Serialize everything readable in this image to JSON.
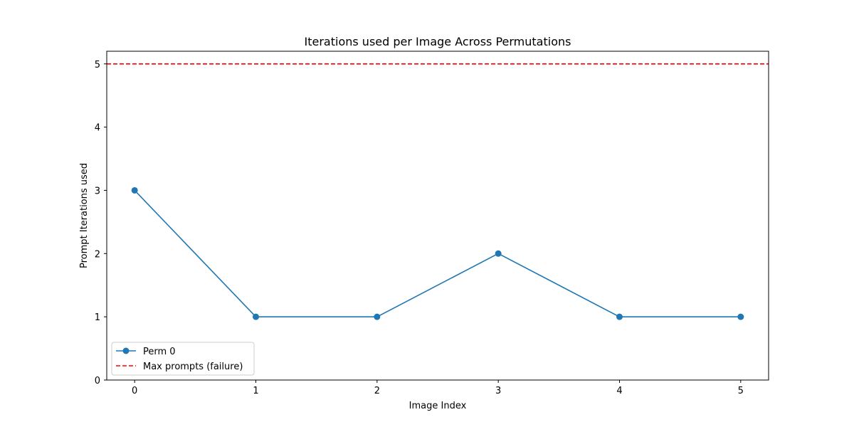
{
  "chart_data": {
    "type": "line",
    "title": "Iterations used per Image Across Permutations",
    "xlabel": "Image Index",
    "ylabel": "Prompt Iterations used",
    "x": [
      0,
      1,
      2,
      3,
      4,
      5
    ],
    "xlim": [
      -0.23,
      5.23
    ],
    "ylim": [
      0,
      5.2
    ],
    "xticks": [
      "0",
      "1",
      "2",
      "3",
      "4",
      "5"
    ],
    "yticks": [
      "0",
      "1",
      "2",
      "3",
      "4",
      "5"
    ],
    "grid": false,
    "legend_position": "lower-left",
    "series": [
      {
        "name": "Perm 0",
        "values": [
          3,
          1,
          1,
          2,
          1,
          1
        ],
        "color": "#1f77b4",
        "marker": "circle",
        "line_style": "solid"
      }
    ],
    "reference_lines": [
      {
        "name": "Max prompts (failure)",
        "y": 5,
        "color": "#ff0000",
        "line_style": "dashed"
      }
    ]
  }
}
